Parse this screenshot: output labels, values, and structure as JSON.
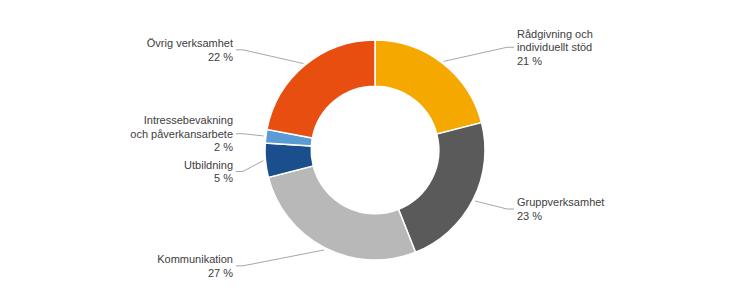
{
  "chart_data": {
    "type": "donut",
    "categories": [
      "Rådgivning och\nindividuellt stöd\n21 %",
      "Gruppverksamhet\n23 %",
      "Kommunikation\n27 %",
      "Utbildning\n5 %",
      "Intressebevakning\noch påverkansarbete\n2 %",
      "Övrig verksamhet\n22 %"
    ],
    "values": [
      21,
      23,
      27,
      5,
      2,
      22
    ],
    "colors": [
      "#F5A800",
      "#5A5A5A",
      "#B8B8B8",
      "#1A4E8C",
      "#5B9BD5",
      "#E84E0F"
    ]
  }
}
